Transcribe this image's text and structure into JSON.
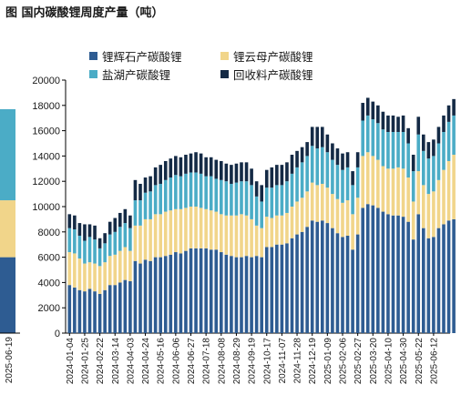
{
  "title": "图 国内碳酸锂周度产量（吨）",
  "colors": {
    "spodumene": "#2e5c92",
    "lepidolite": "#f1d58a",
    "brine": "#4bacc6",
    "recycling": "#142a45"
  },
  "chart_data": {
    "type": "bar",
    "stacked": true,
    "title": "",
    "xlabel": "",
    "ylabel": "",
    "ylim": [
      0,
      20000
    ],
    "yticks": [
      0,
      2000,
      4000,
      6000,
      8000,
      10000,
      12000,
      14000,
      16000,
      18000,
      20000
    ],
    "grid": false,
    "legend_position": "top",
    "x_tick_labels": [
      "2024-01-04",
      "2024-01-25",
      "2024-02-22",
      "2024-03-14",
      "2024-04-03",
      "2024-04-24",
      "2024-05-16",
      "2024-06-06",
      "2024-06-27",
      "2024-07-18",
      "2024-08-08",
      "2024-08-29",
      "2024-09-19",
      "2024-10-17",
      "2024-11-07",
      "2024-11-28",
      "2024-12-19",
      "2025-01-09",
      "2025-02-06",
      "2025-02-27",
      "2025-03-20",
      "2025-04-10",
      "2025-04-30",
      "2025-05-22",
      "2025-06-12"
    ],
    "left_clip_label": "2025-06-19",
    "left_clip_values": [
      6000,
      4500,
      7200
    ],
    "series": [
      {
        "name": "锂辉石产碳酸锂",
        "values": [
          3800,
          3600,
          3400,
          3300,
          3500,
          3300,
          3100,
          3400,
          3800,
          3800,
          4000,
          4200,
          4100,
          5700,
          5500,
          5800,
          5700,
          6000,
          6000,
          6100,
          6200,
          6400,
          6300,
          6500,
          6700,
          6700,
          6700,
          6700,
          6600,
          6600,
          6400,
          6200,
          6100,
          6000,
          6000,
          6100,
          6000,
          6100,
          6000,
          6800,
          6800,
          7000,
          7000,
          7100,
          7500,
          7800,
          8000,
          8400,
          8900,
          8800,
          8900,
          8700,
          8300,
          7900,
          7600,
          7700,
          6600,
          7800,
          9900,
          10200,
          10100,
          9900,
          9600,
          9400,
          9300,
          9300,
          9200,
          8800,
          7400,
          9400,
          8300,
          7500,
          7600,
          8300,
          8600,
          8900,
          9000
        ]
      },
      {
        "name": "锂云母产碳酸锂",
        "values": [
          2600,
          2700,
          2500,
          2200,
          2100,
          2200,
          2200,
          2200,
          2300,
          2400,
          2500,
          2600,
          2400,
          2800,
          3000,
          3200,
          3300,
          3400,
          3400,
          3500,
          3500,
          3400,
          3500,
          3400,
          3300,
          3300,
          3200,
          3100,
          3100,
          3000,
          3000,
          3100,
          3200,
          3300,
          3400,
          3200,
          3000,
          2400,
          2300,
          2400,
          2300,
          2300,
          2300,
          2400,
          2500,
          2600,
          2700,
          2800,
          3000,
          2900,
          2900,
          2800,
          2700,
          2700,
          2700,
          2800,
          2800,
          2900,
          4100,
          4100,
          3900,
          3800,
          3600,
          3600,
          3700,
          3800,
          3800,
          3500,
          3000,
          3400,
          3400,
          3500,
          3600,
          3800,
          4300,
          4700,
          5100
        ]
      },
      {
        "name": "盐湖产碳酸锂",
        "values": [
          1900,
          1900,
          1800,
          1800,
          2000,
          1900,
          1400,
          1500,
          1700,
          1800,
          1900,
          1900,
          1800,
          2000,
          2000,
          2100,
          2200,
          2300,
          2400,
          2500,
          2600,
          2700,
          2600,
          2700,
          2700,
          2700,
          2700,
          2600,
          2700,
          2600,
          2700,
          2700,
          2500,
          2600,
          2600,
          2700,
          2700,
          2300,
          2100,
          2300,
          2400,
          2400,
          2400,
          2500,
          2600,
          2700,
          2800,
          2800,
          2900,
          2900,
          2900,
          2800,
          2700,
          2700,
          2600,
          2600,
          2300,
          2400,
          2800,
          2900,
          2900,
          2900,
          2900,
          2900,
          2900,
          2800,
          2900,
          2700,
          2400,
          2900,
          2700,
          2800,
          2800,
          2900,
          3000,
          3100,
          3100
        ]
      },
      {
        "name": "回收料产碳酸锂",
        "values": [
          1100,
          1100,
          1000,
          1300,
          1000,
          1100,
          800,
          800,
          1000,
          1100,
          1100,
          1100,
          1000,
          1600,
          1300,
          1200,
          1200,
          1400,
          1500,
          1500,
          1500,
          1500,
          1500,
          1500,
          1500,
          1600,
          1600,
          1500,
          1500,
          1500,
          1500,
          1400,
          1500,
          1500,
          1500,
          1500,
          1300,
          1200,
          1300,
          1400,
          1600,
          1600,
          1600,
          1500,
          1500,
          1300,
          1200,
          1100,
          1500,
          1700,
          1600,
          1400,
          1300,
          1300,
          1300,
          1200,
          1100,
          1200,
          1400,
          1400,
          1400,
          1400,
          1400,
          1300,
          1300,
          1200,
          1300,
          1200,
          1300,
          1400,
          1300,
          1300,
          1300,
          1300,
          1300,
          1300,
          1300
        ]
      }
    ]
  }
}
